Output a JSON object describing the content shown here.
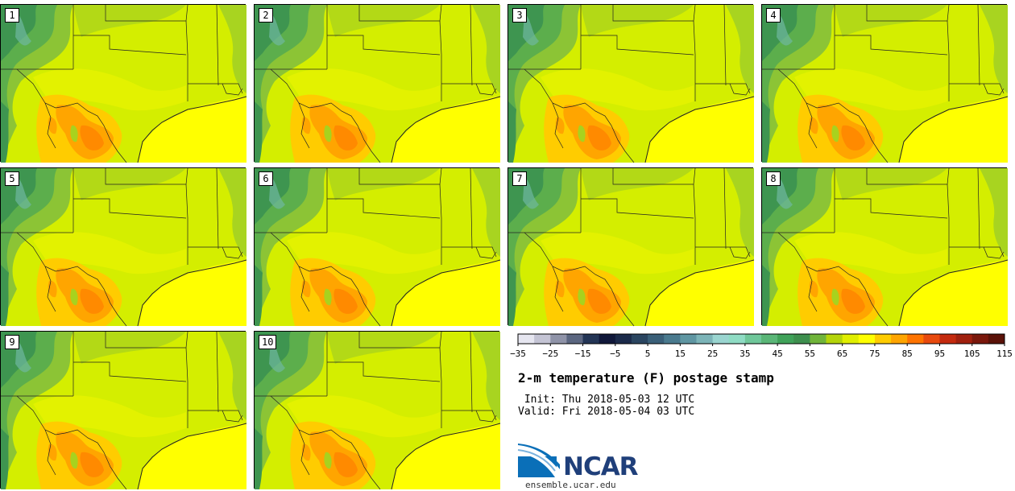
{
  "page": {
    "title": "2-m temperature (F) postage stamp",
    "init_label": " Init:",
    "init_value": "Thu 2018-05-03 12 UTC",
    "valid_label": "Valid:",
    "valid_value": "Fri 2018-05-04 03 UTC"
  },
  "panels": [
    "1",
    "2",
    "3",
    "4",
    "5",
    "6",
    "7",
    "8",
    "9",
    "10"
  ],
  "colorbar": {
    "tick_labels": [
      "−35",
      "−25",
      "−15",
      "−5",
      "5",
      "15",
      "25",
      "35",
      "45",
      "55",
      "65",
      "75",
      "85",
      "95",
      "105",
      "115"
    ],
    "colors": [
      "#e6e6f0",
      "#c4c4d4",
      "#8f93a8",
      "#5b6680",
      "#233555",
      "#10183a",
      "#1b2a4a",
      "#2a4560",
      "#3a5f78",
      "#4a7a8e",
      "#5f96a2",
      "#7cb4b8",
      "#9ad5d0",
      "#8fdcc4",
      "#6fc79a",
      "#5ab677",
      "#40a259",
      "#3e8f4e",
      "#70b43a",
      "#b4d40a",
      "#e0ee00",
      "#ffff00",
      "#ffcc00",
      "#ffa500",
      "#ff7400",
      "#e84a0e",
      "#c42a0e",
      "#a0200e",
      "#7a180c",
      "#5a1208"
    ]
  },
  "logo": {
    "name": "NCAR",
    "url_text": "ensemble.ucar.edu"
  }
}
